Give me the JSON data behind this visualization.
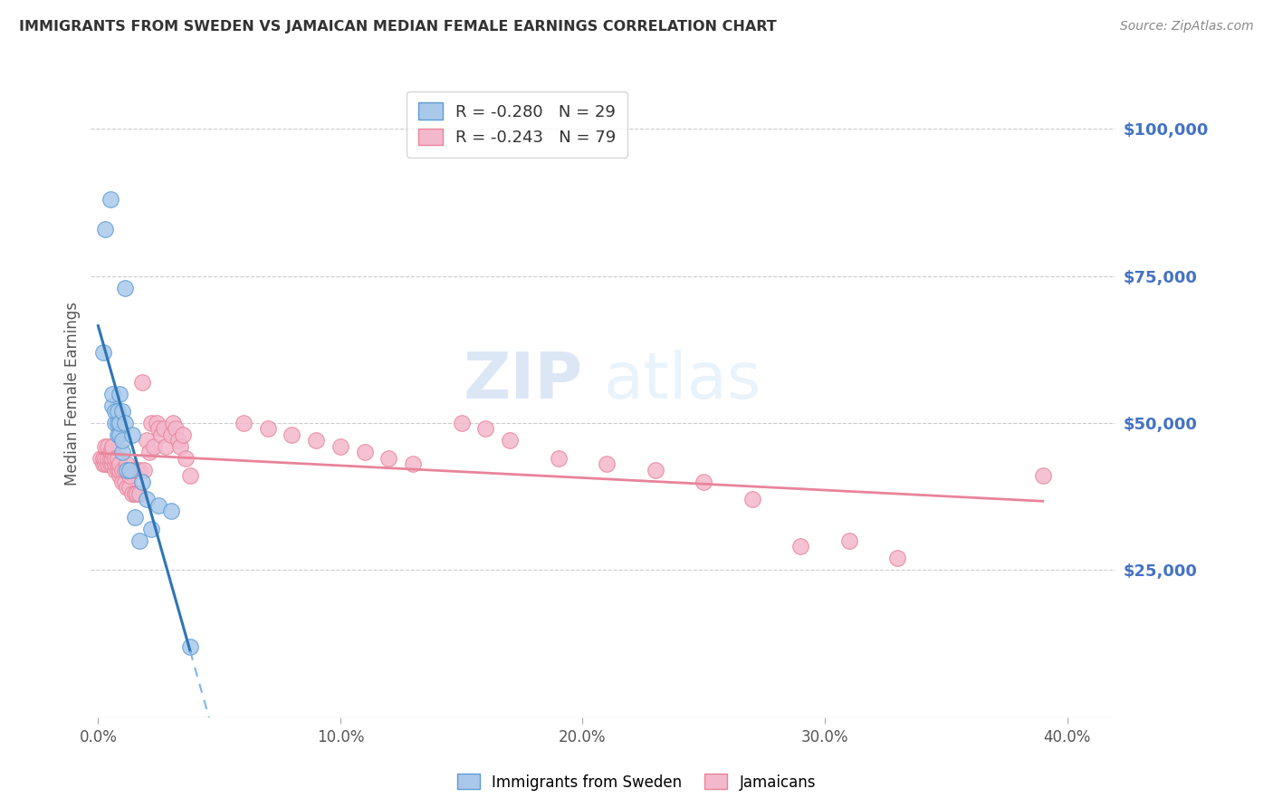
{
  "title": "IMMIGRANTS FROM SWEDEN VS JAMAICAN MEDIAN FEMALE EARNINGS CORRELATION CHART",
  "source": "Source: ZipAtlas.com",
  "xlabel_ticks": [
    "0.0%",
    "10.0%",
    "20.0%",
    "30.0%",
    "40.0%"
  ],
  "xlabel_values": [
    0.0,
    0.1,
    0.2,
    0.3,
    0.4
  ],
  "ylabel": "Median Female Earnings",
  "ylabel_right_labels": [
    "$100,000",
    "$75,000",
    "$50,000",
    "$25,000"
  ],
  "ylabel_right_values": [
    100000,
    75000,
    50000,
    25000
  ],
  "ylim": [
    0,
    110000
  ],
  "xlim": [
    -0.003,
    0.42
  ],
  "watermark_zip": "ZIP",
  "watermark_atlas": "atlas",
  "legend_entries": [
    {
      "label_r": "R = -0.280",
      "label_n": "N = 29",
      "color": "#aac9ea"
    },
    {
      "label_r": "R = -0.243",
      "label_n": "N = 79",
      "color": "#f4b8cc"
    }
  ],
  "sweden_x": [
    0.002,
    0.003,
    0.005,
    0.006,
    0.006,
    0.007,
    0.007,
    0.008,
    0.008,
    0.008,
    0.009,
    0.009,
    0.009,
    0.01,
    0.01,
    0.01,
    0.011,
    0.011,
    0.012,
    0.013,
    0.014,
    0.015,
    0.017,
    0.018,
    0.02,
    0.022,
    0.025,
    0.03,
    0.038
  ],
  "sweden_y": [
    62000,
    83000,
    88000,
    53000,
    55000,
    50000,
    52000,
    50000,
    48000,
    52000,
    48000,
    50000,
    55000,
    45000,
    47000,
    52000,
    73000,
    50000,
    42000,
    42000,
    48000,
    34000,
    30000,
    40000,
    37000,
    32000,
    36000,
    35000,
    12000
  ],
  "jamaica_x": [
    0.001,
    0.002,
    0.002,
    0.003,
    0.003,
    0.003,
    0.004,
    0.004,
    0.004,
    0.005,
    0.005,
    0.005,
    0.006,
    0.006,
    0.006,
    0.006,
    0.007,
    0.007,
    0.007,
    0.008,
    0.008,
    0.008,
    0.009,
    0.009,
    0.009,
    0.01,
    0.01,
    0.011,
    0.011,
    0.012,
    0.012,
    0.013,
    0.013,
    0.014,
    0.014,
    0.015,
    0.016,
    0.016,
    0.017,
    0.017,
    0.018,
    0.019,
    0.02,
    0.021,
    0.022,
    0.023,
    0.024,
    0.025,
    0.026,
    0.027,
    0.028,
    0.03,
    0.031,
    0.032,
    0.033,
    0.034,
    0.035,
    0.036,
    0.038,
    0.06,
    0.07,
    0.08,
    0.09,
    0.1,
    0.11,
    0.12,
    0.13,
    0.15,
    0.16,
    0.17,
    0.19,
    0.21,
    0.23,
    0.25,
    0.27,
    0.29,
    0.31,
    0.33,
    0.39
  ],
  "jamaica_y": [
    44000,
    43000,
    44000,
    43000,
    44000,
    46000,
    43000,
    44000,
    46000,
    43000,
    44000,
    45000,
    43000,
    44000,
    45000,
    46000,
    42000,
    43000,
    44000,
    42000,
    43000,
    44000,
    41000,
    42000,
    43000,
    40000,
    42000,
    40000,
    42000,
    39000,
    43000,
    39000,
    41000,
    38000,
    42000,
    38000,
    42000,
    38000,
    42000,
    38000,
    57000,
    42000,
    47000,
    45000,
    50000,
    46000,
    50000,
    49000,
    48000,
    49000,
    46000,
    48000,
    50000,
    49000,
    47000,
    46000,
    48000,
    44000,
    41000,
    50000,
    49000,
    48000,
    47000,
    46000,
    45000,
    44000,
    43000,
    50000,
    49000,
    47000,
    44000,
    43000,
    42000,
    40000,
    37000,
    29000,
    30000,
    27000,
    41000
  ],
  "sweden_color": "#aac9ea",
  "jamaica_color": "#f4b8cc",
  "sweden_edge_color": "#5b9bd5",
  "jamaica_edge_color": "#e8849a",
  "sweden_line_color": "#2e75b6",
  "sweden_dash_color": "#7eb4ea",
  "jamaica_line_color": "#e8849a",
  "bg_color": "#ffffff",
  "grid_color": "#cccccc",
  "title_color": "#333333",
  "right_label_color": "#4472c4",
  "axis_label_color": "#555555",
  "bottom_legend": [
    {
      "label": "Immigrants from Sweden",
      "face": "#aac9ea",
      "edge": "#5b9bd5"
    },
    {
      "label": "Jamaicans",
      "face": "#f4b8cc",
      "edge": "#e8849a"
    }
  ]
}
